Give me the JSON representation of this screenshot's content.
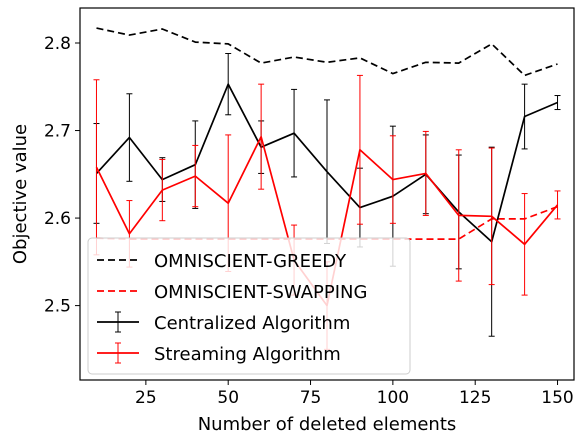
{
  "chart_data": {
    "type": "line",
    "xlabel": "Number of deleted elements",
    "ylabel": "Objective value",
    "xlim": [
      5,
      155
    ],
    "ylim": [
      2.415,
      2.84
    ],
    "xticks": [
      25,
      50,
      75,
      100,
      125,
      150
    ],
    "yticks": [
      2.5,
      2.6,
      2.7,
      2.8
    ],
    "grid": false,
    "legend_position": "lower-left",
    "series": [
      {
        "name": "OMNISCIENT-GREEDY",
        "color": "#000000",
        "style": "dashed",
        "x": [
          10,
          20,
          30,
          40,
          50,
          60,
          70,
          80,
          90,
          100,
          110,
          120,
          130,
          140,
          150
        ],
        "y": [
          2.817,
          2.809,
          2.816,
          2.801,
          2.799,
          2.777,
          2.784,
          2.778,
          2.783,
          2.765,
          2.778,
          2.777,
          2.799,
          2.763,
          2.776
        ]
      },
      {
        "name": "OMNISCIENT-SWAPPING",
        "color": "#ff0000",
        "style": "dashed",
        "x": [
          10,
          20,
          30,
          40,
          50,
          60,
          70,
          80,
          90,
          100,
          110,
          120,
          130,
          140,
          150
        ],
        "y": [
          2.577,
          2.576,
          2.576,
          2.576,
          2.576,
          2.576,
          2.576,
          2.576,
          2.576,
          2.576,
          2.576,
          2.576,
          2.599,
          2.599,
          2.613
        ]
      },
      {
        "name": "Centralized Algorithm",
        "color": "#000000",
        "style": "solid",
        "x": [
          10,
          20,
          30,
          40,
          50,
          60,
          70,
          80,
          90,
          100,
          110,
          120,
          130,
          140,
          150
        ],
        "y": [
          2.651,
          2.692,
          2.644,
          2.661,
          2.753,
          2.681,
          2.697,
          2.653,
          2.612,
          2.625,
          2.65,
          2.607,
          2.573,
          2.716,
          2.732
        ],
        "err": [
          0.057,
          0.05,
          0.025,
          0.05,
          0.035,
          0.03,
          0.05,
          0.082,
          0.045,
          0.08,
          0.045,
          0.065,
          0.108,
          0.037,
          0.008
        ]
      },
      {
        "name": "Streaming Algorithm",
        "color": "#ff0000",
        "style": "solid",
        "x": [
          10,
          20,
          30,
          40,
          50,
          60,
          70,
          80,
          90,
          100,
          110,
          120,
          130,
          140,
          150
        ],
        "y": [
          2.658,
          2.582,
          2.632,
          2.648,
          2.617,
          2.693,
          2.552,
          2.5,
          2.678,
          2.644,
          2.651,
          2.603,
          2.602,
          2.57,
          2.615
        ],
        "err": [
          0.1,
          0.038,
          0.035,
          0.035,
          0.078,
          0.06,
          0.04,
          0.05,
          0.085,
          0.05,
          0.048,
          0.075,
          0.078,
          0.058,
          0.016
        ]
      }
    ]
  }
}
